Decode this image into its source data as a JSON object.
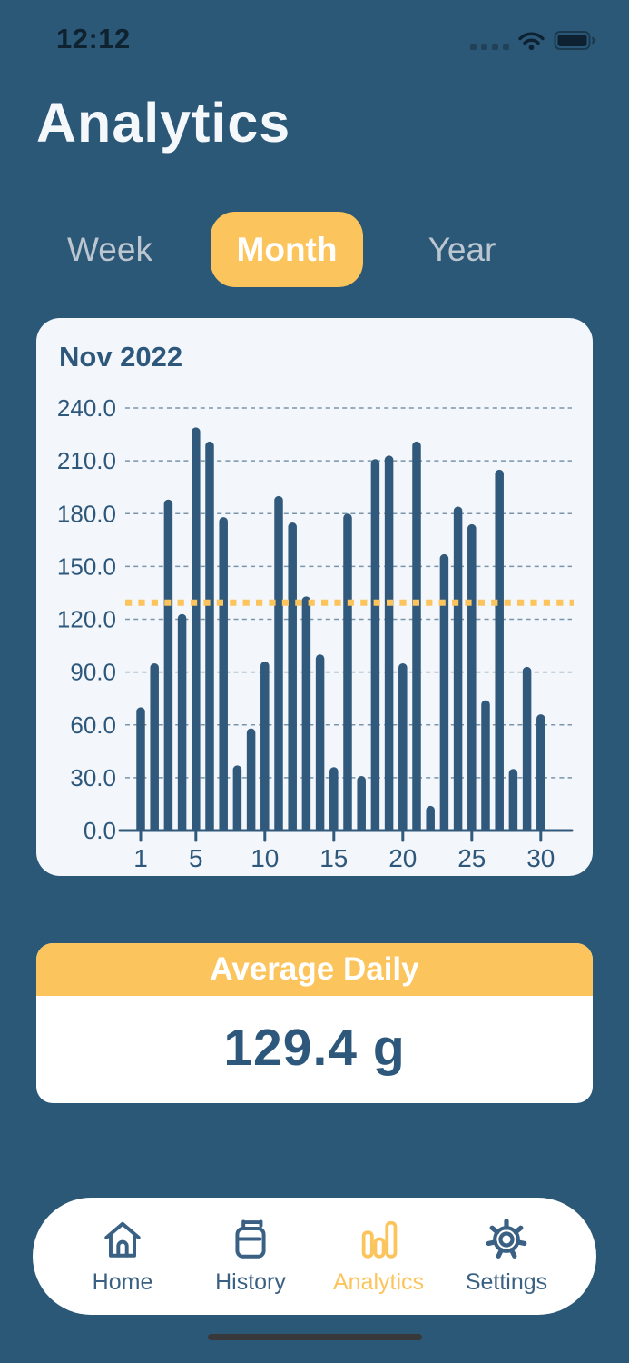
{
  "status_bar": {
    "time": "12:12"
  },
  "header": {
    "title": "Analytics"
  },
  "tabs": [
    {
      "label": "Week",
      "active": false
    },
    {
      "label": "Month",
      "active": true
    },
    {
      "label": "Year",
      "active": false
    }
  ],
  "chart_data": {
    "type": "bar",
    "title": "Nov 2022",
    "categories": [
      1,
      2,
      3,
      4,
      5,
      6,
      7,
      8,
      9,
      10,
      11,
      12,
      13,
      14,
      15,
      16,
      17,
      18,
      19,
      20,
      21,
      22,
      23,
      24,
      25,
      26,
      27,
      28,
      29,
      30
    ],
    "values": [
      70,
      95,
      188,
      123,
      229,
      221,
      178,
      37,
      58,
      96,
      190,
      175,
      133,
      100,
      36,
      180,
      31,
      211,
      213,
      95,
      221,
      14,
      157,
      184,
      174,
      74,
      205,
      35,
      93,
      66
    ],
    "unit": "g",
    "ylim": [
      0,
      240
    ],
    "y_tick_labels": [
      "240.0",
      "210.0",
      "180.0",
      "150.0",
      "120.0",
      "90.0",
      "60.0",
      "30.0",
      "0.0"
    ],
    "x_tick_labels": [
      1,
      5,
      10,
      15,
      20,
      25,
      30
    ],
    "average_line": 129.4,
    "grid": "dashed horizontal",
    "legend": "none",
    "bar_color": "#31597B",
    "average_line_color": "#FBC45C"
  },
  "average_card": {
    "title": "Average Daily",
    "value": "129.4 g"
  },
  "nav": {
    "items": [
      {
        "label": "Home",
        "icon": "home-icon",
        "active": false
      },
      {
        "label": "History",
        "icon": "calendar-icon",
        "active": false
      },
      {
        "label": "Analytics",
        "icon": "bar-chart-icon",
        "active": true
      },
      {
        "label": "Settings",
        "icon": "gear-icon",
        "active": false
      }
    ]
  },
  "colors": {
    "background": "#2B5877",
    "card_background": "#F3F6FA",
    "accent_yellow": "#FCC45C",
    "primary_blue": "#31597B",
    "inactive_tab_text": "#BCC6D0",
    "nav_blue": "#3A6183"
  }
}
